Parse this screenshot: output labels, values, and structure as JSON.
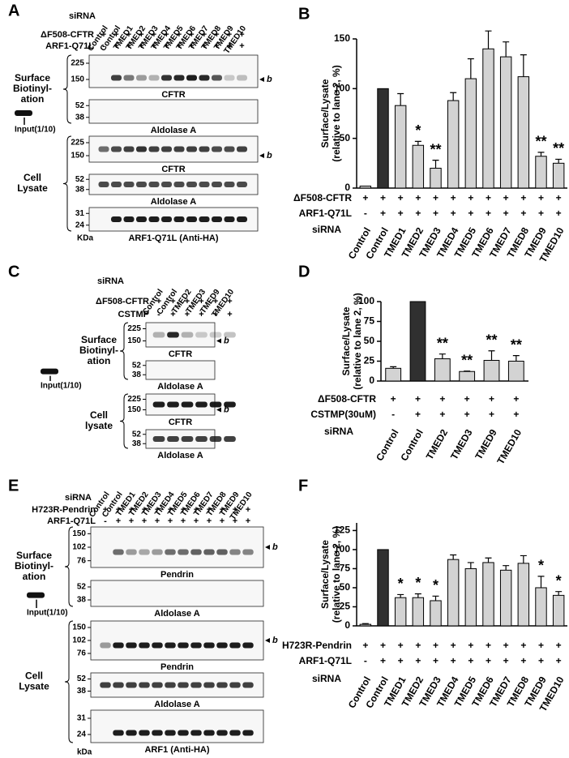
{
  "panels": [
    {
      "label": "A",
      "x_label": "siRNA",
      "lanes": [
        "Control",
        "Control",
        "TMED1",
        "TMED2",
        "TMED3",
        "TMED4",
        "TMED5",
        "TMED6",
        "TMED7",
        "TMED8",
        "TMED9",
        "TMED10"
      ],
      "rows": [
        {
          "label": "ΔF508-CFTR",
          "signs": [
            "+",
            "+",
            "+",
            "+",
            "+",
            "+",
            "+",
            "+",
            "+",
            "+",
            "+",
            "+"
          ]
        },
        {
          "label": "ARF1-Q71L",
          "signs": [
            "-",
            "+",
            "+",
            "+",
            "+",
            "+",
            "+",
            "+",
            "+",
            "+",
            "+",
            "+"
          ]
        }
      ],
      "groups": [
        [
          "Surface",
          "Biotinyl-",
          "ation"
        ],
        [
          "Cell",
          "Lysate"
        ]
      ],
      "blots": [
        {
          "markers": [
            "225",
            "150"
          ],
          "label": "CFTR",
          "band_tag": "b"
        },
        {
          "markers": [
            "52",
            "38"
          ],
          "label": "Aldolase A",
          "input": "Input(1/10)"
        },
        {
          "markers": [
            "225",
            "150"
          ],
          "label": "CFTR",
          "band_tag": "b"
        },
        {
          "markers": [
            "52",
            "38"
          ],
          "label": "Aldolase A"
        },
        {
          "markers": [
            "31",
            "24"
          ],
          "label": "ARF1-Q71L (Anti-HA)"
        }
      ],
      "unit": "KDa"
    },
    {
      "label": "C",
      "x_label": "siRNA",
      "lanes": [
        "Control",
        "Control",
        "TMED2",
        "TMED3",
        "TMED9",
        "TMED10"
      ],
      "rows": [
        {
          "label": "ΔF508-CFTR",
          "signs": [
            "+",
            "+",
            "+",
            "+",
            "+",
            "+"
          ]
        },
        {
          "label": "CSTMP",
          "signs": [
            "-",
            "+",
            "+",
            "+",
            "+",
            "+"
          ]
        }
      ],
      "groups": [
        [
          "Surface",
          "Biotinyl-",
          "ation"
        ],
        [
          "Cell",
          "lysate"
        ]
      ],
      "blots": [
        {
          "markers": [
            "225",
            "150"
          ],
          "label": "CFTR",
          "band_tag": "b"
        },
        {
          "markers": [
            "52",
            "38"
          ],
          "label": "Aldolase A",
          "input": "Input(1/10)"
        },
        {
          "markers": [
            "225",
            "150"
          ],
          "label": "CFTR",
          "band_tag": "b"
        },
        {
          "markers": [
            "52",
            "38"
          ],
          "label": "Aldolase A"
        }
      ]
    },
    {
      "label": "E",
      "x_label": "siRNA",
      "lanes": [
        "Control",
        "Control",
        "TMED1",
        "TMED2",
        "TMED3",
        "TMED4",
        "TMED5",
        "TMED6",
        "TMED7",
        "TMED8",
        "TMED9",
        "TMED10"
      ],
      "rows": [
        {
          "label": "H723R-Pendrin",
          "signs": [
            "+",
            "+",
            "+",
            "+",
            "+",
            "+",
            "+",
            "+",
            "+",
            "+",
            "+",
            "+"
          ]
        },
        {
          "label": "ARF1-Q71L",
          "signs": [
            "-",
            "+",
            "+",
            "+",
            "+",
            "+",
            "+",
            "+",
            "+",
            "+",
            "+",
            "+"
          ]
        }
      ],
      "groups": [
        [
          "Surface",
          "Biotinyl-",
          "ation"
        ],
        [
          "Cell",
          "Lysate"
        ]
      ],
      "blots": [
        {
          "markers": [
            "150",
            "102",
            "76"
          ],
          "label": "Pendrin",
          "band_tag": "b"
        },
        {
          "markers": [
            "52",
            "38"
          ],
          "label": "Aldolase A",
          "input": "Input(1/10)"
        },
        {
          "markers": [
            "150",
            "102",
            "76"
          ],
          "label": "Pendrin",
          "band_tag": "b"
        },
        {
          "markers": [
            "52",
            "38"
          ],
          "label": "Aldolase A"
        },
        {
          "markers": [
            "31",
            "24"
          ],
          "label": "ARF1 (Anti-HA)"
        }
      ],
      "unit": "kDa"
    }
  ],
  "chart_data": [
    {
      "type": "bar",
      "panel_label": "B",
      "y_label": [
        "Surface/Lysate",
        "(relative to lane 2, %)"
      ],
      "x_label": "siRNA",
      "categories": [
        "Control",
        "Control",
        "TMED1",
        "TMED2",
        "TMED3",
        "TMED4",
        "TMED5",
        "TMED6",
        "TMED7",
        "TMED8",
        "TMED9",
        "TMED10"
      ],
      "values": [
        2,
        100,
        83,
        43,
        20,
        88,
        110,
        140,
        132,
        112,
        32,
        25
      ],
      "errors": [
        0,
        0,
        12,
        4,
        8,
        8,
        20,
        18,
        15,
        22,
        4,
        4
      ],
      "significance": [
        null,
        null,
        null,
        "*",
        "**",
        null,
        null,
        null,
        null,
        null,
        "**",
        "**"
      ],
      "colors": [
        "#d3d3d3",
        "#303030",
        "#d3d3d3",
        "#d3d3d3",
        "#d3d3d3",
        "#d3d3d3",
        "#d3d3d3",
        "#d3d3d3",
        "#d3d3d3",
        "#d3d3d3",
        "#d3d3d3",
        "#d3d3d3"
      ],
      "rows": [
        {
          "label": "ΔF508-CFTR",
          "signs": [
            "+",
            "+",
            "+",
            "+",
            "+",
            "+",
            "+",
            "+",
            "+",
            "+",
            "+",
            "+"
          ]
        },
        {
          "label": "ARF1-Q71L",
          "signs": [
            "-",
            "+",
            "+",
            "+",
            "+",
            "+",
            "+",
            "+",
            "+",
            "+",
            "+",
            "+"
          ]
        }
      ],
      "ylim": [
        0,
        150
      ],
      "yticks": [
        0,
        50,
        100,
        150
      ]
    },
    {
      "type": "bar",
      "panel_label": "D",
      "y_label": [
        "Surface/Lysate",
        "(relative to lane 2, %)"
      ],
      "x_label": "siRNA",
      "categories": [
        "Control",
        "Control",
        "TMED2",
        "TMED3",
        "TMED9",
        "TMED10"
      ],
      "values": [
        16,
        100,
        28,
        12,
        26,
        25
      ],
      "errors": [
        2,
        0,
        6,
        0.5,
        12,
        7
      ],
      "significance": [
        null,
        null,
        "**",
        "**",
        "**",
        "**"
      ],
      "colors": [
        "#d3d3d3",
        "#303030",
        "#d3d3d3",
        "#d3d3d3",
        "#d3d3d3",
        "#d3d3d3"
      ],
      "rows": [
        {
          "label": "ΔF508-CFTR",
          "signs": [
            "+",
            "+",
            "+",
            "+",
            "+",
            "+"
          ]
        },
        {
          "label": "CSTMP(30uM)",
          "signs": [
            "-",
            "+",
            "+",
            "+",
            "+",
            "+"
          ]
        }
      ],
      "ylim": [
        0,
        100
      ],
      "yticks": [
        0,
        25,
        50,
        75,
        100
      ]
    },
    {
      "type": "bar",
      "panel_label": "F",
      "y_label": [
        "Surface/Lysate",
        "(relative to lane 2, %)"
      ],
      "x_label": "siRNA",
      "categories": [
        "Control",
        "Control",
        "TMED1",
        "TMED2",
        "TMED3",
        "TMED4",
        "TMED5",
        "TMED6",
        "TMED7",
        "TMED8",
        "TMED9",
        "TMED10"
      ],
      "values": [
        2,
        100,
        37,
        37,
        33,
        87,
        75,
        83,
        73,
        82,
        50,
        40
      ],
      "errors": [
        1,
        0,
        4,
        5,
        6,
        6,
        8,
        6,
        6,
        10,
        15,
        5
      ],
      "significance": [
        null,
        null,
        "*",
        "*",
        "*",
        null,
        null,
        null,
        null,
        null,
        "*",
        "*"
      ],
      "colors": [
        "#d3d3d3",
        "#303030",
        "#d3d3d3",
        "#d3d3d3",
        "#d3d3d3",
        "#d3d3d3",
        "#d3d3d3",
        "#d3d3d3",
        "#d3d3d3",
        "#d3d3d3",
        "#d3d3d3",
        "#d3d3d3"
      ],
      "rows": [
        {
          "label": "H723R-Pendrin",
          "signs": [
            "+",
            "+",
            "+",
            "+",
            "+",
            "+",
            "+",
            "+",
            "+",
            "+",
            "+",
            "+"
          ]
        },
        {
          "label": "ARF1-Q71L",
          "signs": [
            "-",
            "+",
            "+",
            "+",
            "+",
            "+",
            "+",
            "+",
            "+",
            "+",
            "+",
            "+"
          ]
        }
      ],
      "ylim": [
        0,
        135
      ],
      "yticks": [
        0,
        25,
        50,
        75,
        100,
        125
      ]
    }
  ]
}
